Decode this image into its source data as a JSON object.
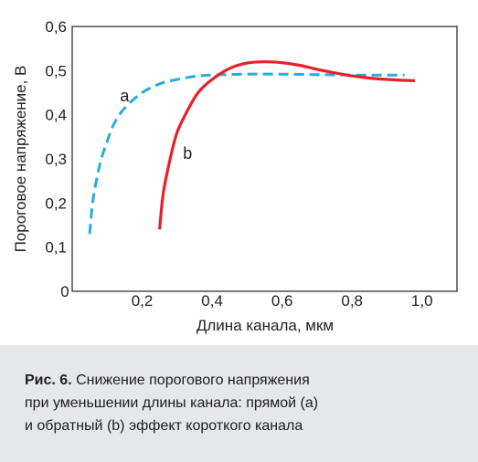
{
  "chart_data": {
    "type": "line",
    "xlabel": "Длина канала, мкм",
    "ylabel": "Пороговое напряжение, В",
    "xlim": [
      0,
      1.1
    ],
    "ylim": [
      0,
      0.6
    ],
    "x_ticks": [
      "0,2",
      "0,4",
      "0,6",
      "0,8",
      "1,0"
    ],
    "y_ticks": [
      "0,1",
      "0,2",
      "0,3",
      "0,4",
      "0,5",
      "0,6"
    ],
    "origin_label": "0",
    "grid": false,
    "series": [
      {
        "name": "a",
        "color": "#29aae1",
        "style": "dashed",
        "x": [
          0.05,
          0.06,
          0.08,
          0.1,
          0.12,
          0.15,
          0.2,
          0.25,
          0.3,
          0.35,
          0.4,
          0.5,
          0.6,
          0.7,
          0.8,
          0.9,
          0.95
        ],
        "y": [
          0.13,
          0.21,
          0.29,
          0.34,
          0.38,
          0.415,
          0.45,
          0.47,
          0.48,
          0.487,
          0.49,
          0.492,
          0.492,
          0.491,
          0.49,
          0.49,
          0.49
        ]
      },
      {
        "name": "b",
        "color": "#e8202a",
        "style": "solid",
        "x": [
          0.25,
          0.26,
          0.28,
          0.3,
          0.33,
          0.36,
          0.4,
          0.45,
          0.5,
          0.55,
          0.6,
          0.65,
          0.7,
          0.75,
          0.8,
          0.85,
          0.9,
          0.95,
          0.98
        ],
        "y": [
          0.14,
          0.22,
          0.3,
          0.36,
          0.41,
          0.45,
          0.48,
          0.505,
          0.517,
          0.52,
          0.518,
          0.512,
          0.503,
          0.495,
          0.488,
          0.483,
          0.48,
          0.478,
          0.477
        ]
      }
    ],
    "annotations": [
      {
        "text": "a",
        "x": 0.15,
        "y": 0.43
      },
      {
        "text": "b",
        "x": 0.33,
        "y": 0.3
      }
    ]
  },
  "caption": {
    "label": "Рис. 6.",
    "line1": " Снижение порогового напряжения",
    "line2": "при уменьшении длины канала: прямой (a)",
    "line3": "и обратный (b) эффект короткого канала"
  }
}
